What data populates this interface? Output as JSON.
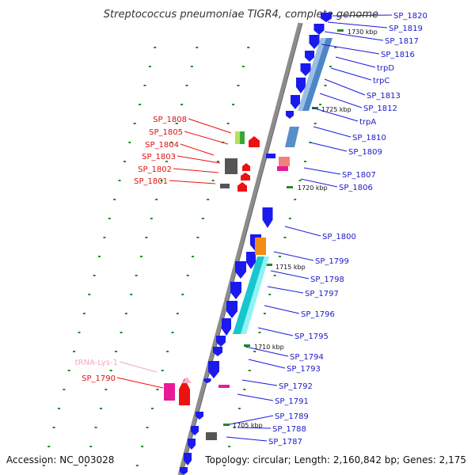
{
  "title": "Streptococcus pneumoniae TIGR4, complete genome",
  "footer": {
    "accession": "Accession: NC_003028",
    "topology": "Topology: circular; Length: 2,160,842 bp; Genes: 2,175"
  },
  "colors": {
    "backbone": "#8c8c8c",
    "plus_strand_gene": "#1a1aee",
    "minus_strand_gene": "#ee1111",
    "plus_label": "#1a1ac8",
    "minus_label": "#dd1111",
    "trna_label": "#f4a6c8",
    "tick": "#228b22"
  },
  "kbp_ticks": [
    {
      "label": "1730 kbp"
    },
    {
      "label": "1725 kbp"
    },
    {
      "label": "1720 kbp"
    },
    {
      "label": "1715 kbp"
    },
    {
      "label": "1710 kbp"
    },
    {
      "label": "1705 kbp"
    }
  ],
  "right_labels": [
    "SP_1820",
    "SP_1819",
    "SP_1817",
    "SP_1816",
    "trpD",
    "trpC",
    "SP_1813",
    "SP_1812",
    "trpA",
    "SP_1810",
    "SP_1809",
    "SP_1807",
    "SP_1806",
    "SP_1800",
    "SP_1799",
    "SP_1798",
    "SP_1797",
    "SP_1796",
    "SP_1795",
    "SP_1794",
    "SP_1793",
    "SP_1792",
    "SP_1791",
    "SP_1789",
    "SP_1788",
    "SP_1787"
  ],
  "left_labels": [
    "SP_1808",
    "SP_1805",
    "SP_1804",
    "SP_1803",
    "SP_1802",
    "SP_1801",
    "tRNA-Lys-1",
    "SP_1790"
  ]
}
